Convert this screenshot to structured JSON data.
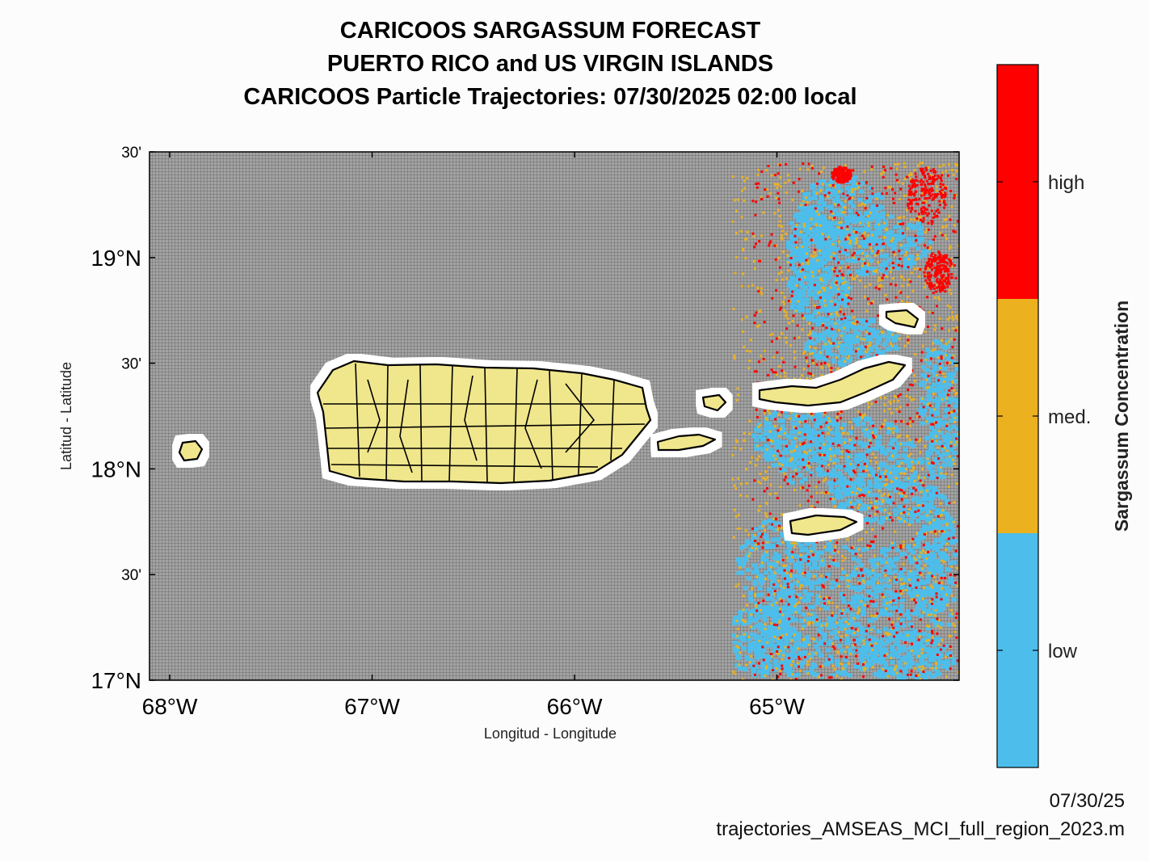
{
  "titles": {
    "line1": "CARICOOS SARGASSUM FORECAST",
    "line2": "PUERTO RICO and US VIRGIN ISLANDS",
    "line3": "CARICOOS Particle Trajectories: 07/30/2025 02:00 local"
  },
  "axes": {
    "ylabel": "Latitud  - Latitude",
    "xlabel": "Longitud  - Longitude",
    "lon_range": [
      -68.1,
      -64.1
    ],
    "lat_range": [
      17.0,
      19.5
    ],
    "yticks": [
      {
        "lat": 19.5,
        "label": "30'"
      },
      {
        "lat": 19.0,
        "label": "19°N"
      },
      {
        "lat": 18.5,
        "label": "30'"
      },
      {
        "lat": 18.0,
        "label": "18°N"
      },
      {
        "lat": 17.5,
        "label": "30'"
      },
      {
        "lat": 17.0,
        "label": "17°N"
      }
    ],
    "xticks": [
      {
        "lon": -68,
        "label": "68°W"
      },
      {
        "lon": -67,
        "label": "67°W"
      },
      {
        "lon": -66,
        "label": "66°W"
      },
      {
        "lon": -65,
        "label": "65°W"
      }
    ]
  },
  "colorbar": {
    "title": "Sargassum Concentration",
    "levels": [
      {
        "label": "high",
        "color": "#ff0000"
      },
      {
        "label": "med.",
        "color": "#ebb11f"
      },
      {
        "label": "low",
        "color": "#4dbeeb"
      }
    ]
  },
  "colors": {
    "land": "#f0e68c",
    "sea_grid": "#8a8a8a",
    "low": "#4dbeeb",
    "med": "#ebb11f",
    "high": "#ff0000"
  },
  "footer": {
    "date": "07/30/25",
    "script": "trajectories_AMSEAS_MCI_full_region_2023.m"
  }
}
